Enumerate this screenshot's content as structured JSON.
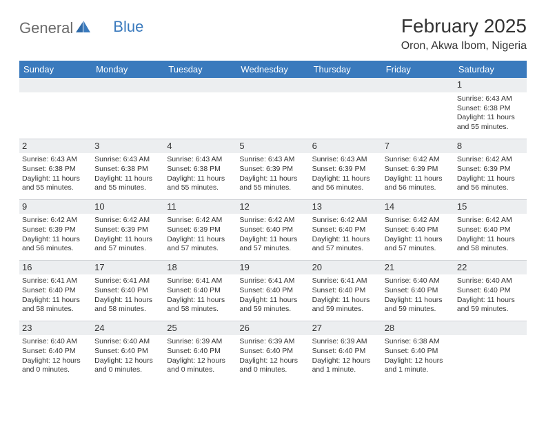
{
  "logo": {
    "text1": "General",
    "text2": "Blue"
  },
  "title": "February 2025",
  "subtitle": "Oron, Akwa Ibom, Nigeria",
  "colors": {
    "header_bg": "#3a7abd",
    "header_fg": "#ffffff",
    "daynum_bg": "#eceef0",
    "border": "#cfd2d6",
    "text": "#333333",
    "logo_gray": "#6b6b6b",
    "logo_blue": "#3a7abd",
    "page_bg": "#ffffff"
  },
  "day_names": [
    "Sunday",
    "Monday",
    "Tuesday",
    "Wednesday",
    "Thursday",
    "Friday",
    "Saturday"
  ],
  "weeks": [
    [
      {
        "n": "",
        "sr": "",
        "ss": "",
        "dl": ""
      },
      {
        "n": "",
        "sr": "",
        "ss": "",
        "dl": ""
      },
      {
        "n": "",
        "sr": "",
        "ss": "",
        "dl": ""
      },
      {
        "n": "",
        "sr": "",
        "ss": "",
        "dl": ""
      },
      {
        "n": "",
        "sr": "",
        "ss": "",
        "dl": ""
      },
      {
        "n": "",
        "sr": "",
        "ss": "",
        "dl": ""
      },
      {
        "n": "1",
        "sr": "Sunrise: 6:43 AM",
        "ss": "Sunset: 6:38 PM",
        "dl": "Daylight: 11 hours and 55 minutes."
      }
    ],
    [
      {
        "n": "2",
        "sr": "Sunrise: 6:43 AM",
        "ss": "Sunset: 6:38 PM",
        "dl": "Daylight: 11 hours and 55 minutes."
      },
      {
        "n": "3",
        "sr": "Sunrise: 6:43 AM",
        "ss": "Sunset: 6:38 PM",
        "dl": "Daylight: 11 hours and 55 minutes."
      },
      {
        "n": "4",
        "sr": "Sunrise: 6:43 AM",
        "ss": "Sunset: 6:38 PM",
        "dl": "Daylight: 11 hours and 55 minutes."
      },
      {
        "n": "5",
        "sr": "Sunrise: 6:43 AM",
        "ss": "Sunset: 6:39 PM",
        "dl": "Daylight: 11 hours and 55 minutes."
      },
      {
        "n": "6",
        "sr": "Sunrise: 6:43 AM",
        "ss": "Sunset: 6:39 PM",
        "dl": "Daylight: 11 hours and 56 minutes."
      },
      {
        "n": "7",
        "sr": "Sunrise: 6:42 AM",
        "ss": "Sunset: 6:39 PM",
        "dl": "Daylight: 11 hours and 56 minutes."
      },
      {
        "n": "8",
        "sr": "Sunrise: 6:42 AM",
        "ss": "Sunset: 6:39 PM",
        "dl": "Daylight: 11 hours and 56 minutes."
      }
    ],
    [
      {
        "n": "9",
        "sr": "Sunrise: 6:42 AM",
        "ss": "Sunset: 6:39 PM",
        "dl": "Daylight: 11 hours and 56 minutes."
      },
      {
        "n": "10",
        "sr": "Sunrise: 6:42 AM",
        "ss": "Sunset: 6:39 PM",
        "dl": "Daylight: 11 hours and 57 minutes."
      },
      {
        "n": "11",
        "sr": "Sunrise: 6:42 AM",
        "ss": "Sunset: 6:39 PM",
        "dl": "Daylight: 11 hours and 57 minutes."
      },
      {
        "n": "12",
        "sr": "Sunrise: 6:42 AM",
        "ss": "Sunset: 6:40 PM",
        "dl": "Daylight: 11 hours and 57 minutes."
      },
      {
        "n": "13",
        "sr": "Sunrise: 6:42 AM",
        "ss": "Sunset: 6:40 PM",
        "dl": "Daylight: 11 hours and 57 minutes."
      },
      {
        "n": "14",
        "sr": "Sunrise: 6:42 AM",
        "ss": "Sunset: 6:40 PM",
        "dl": "Daylight: 11 hours and 57 minutes."
      },
      {
        "n": "15",
        "sr": "Sunrise: 6:42 AM",
        "ss": "Sunset: 6:40 PM",
        "dl": "Daylight: 11 hours and 58 minutes."
      }
    ],
    [
      {
        "n": "16",
        "sr": "Sunrise: 6:41 AM",
        "ss": "Sunset: 6:40 PM",
        "dl": "Daylight: 11 hours and 58 minutes."
      },
      {
        "n": "17",
        "sr": "Sunrise: 6:41 AM",
        "ss": "Sunset: 6:40 PM",
        "dl": "Daylight: 11 hours and 58 minutes."
      },
      {
        "n": "18",
        "sr": "Sunrise: 6:41 AM",
        "ss": "Sunset: 6:40 PM",
        "dl": "Daylight: 11 hours and 58 minutes."
      },
      {
        "n": "19",
        "sr": "Sunrise: 6:41 AM",
        "ss": "Sunset: 6:40 PM",
        "dl": "Daylight: 11 hours and 59 minutes."
      },
      {
        "n": "20",
        "sr": "Sunrise: 6:41 AM",
        "ss": "Sunset: 6:40 PM",
        "dl": "Daylight: 11 hours and 59 minutes."
      },
      {
        "n": "21",
        "sr": "Sunrise: 6:40 AM",
        "ss": "Sunset: 6:40 PM",
        "dl": "Daylight: 11 hours and 59 minutes."
      },
      {
        "n": "22",
        "sr": "Sunrise: 6:40 AM",
        "ss": "Sunset: 6:40 PM",
        "dl": "Daylight: 11 hours and 59 minutes."
      }
    ],
    [
      {
        "n": "23",
        "sr": "Sunrise: 6:40 AM",
        "ss": "Sunset: 6:40 PM",
        "dl": "Daylight: 12 hours and 0 minutes."
      },
      {
        "n": "24",
        "sr": "Sunrise: 6:40 AM",
        "ss": "Sunset: 6:40 PM",
        "dl": "Daylight: 12 hours and 0 minutes."
      },
      {
        "n": "25",
        "sr": "Sunrise: 6:39 AM",
        "ss": "Sunset: 6:40 PM",
        "dl": "Daylight: 12 hours and 0 minutes."
      },
      {
        "n": "26",
        "sr": "Sunrise: 6:39 AM",
        "ss": "Sunset: 6:40 PM",
        "dl": "Daylight: 12 hours and 0 minutes."
      },
      {
        "n": "27",
        "sr": "Sunrise: 6:39 AM",
        "ss": "Sunset: 6:40 PM",
        "dl": "Daylight: 12 hours and 1 minute."
      },
      {
        "n": "28",
        "sr": "Sunrise: 6:38 AM",
        "ss": "Sunset: 6:40 PM",
        "dl": "Daylight: 12 hours and 1 minute."
      },
      {
        "n": "",
        "sr": "",
        "ss": "",
        "dl": ""
      }
    ]
  ]
}
